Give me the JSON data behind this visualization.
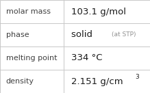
{
  "rows": [
    {
      "label": "molar mass",
      "value": "103.1 g/mol",
      "value_suffix": null,
      "superscript": null
    },
    {
      "label": "phase",
      "value": "solid",
      "value_suffix": "(at STP)",
      "superscript": null
    },
    {
      "label": "melting point",
      "value": "334 °C",
      "value_suffix": null,
      "superscript": null
    },
    {
      "label": "density",
      "value": "2.151 g/cm",
      "value_suffix": null,
      "superscript": "3"
    }
  ],
  "background_color": "#ffffff",
  "border_color": "#c8c8c8",
  "label_color": "#404040",
  "value_color": "#1a1a1a",
  "suffix_color": "#909090",
  "label_fontsize": 8.0,
  "value_fontsize": 9.5,
  "suffix_fontsize": 6.5,
  "super_fontsize": 6.5,
  "col_split": 0.425,
  "figsize": [
    2.19,
    1.36
  ],
  "dpi": 100
}
